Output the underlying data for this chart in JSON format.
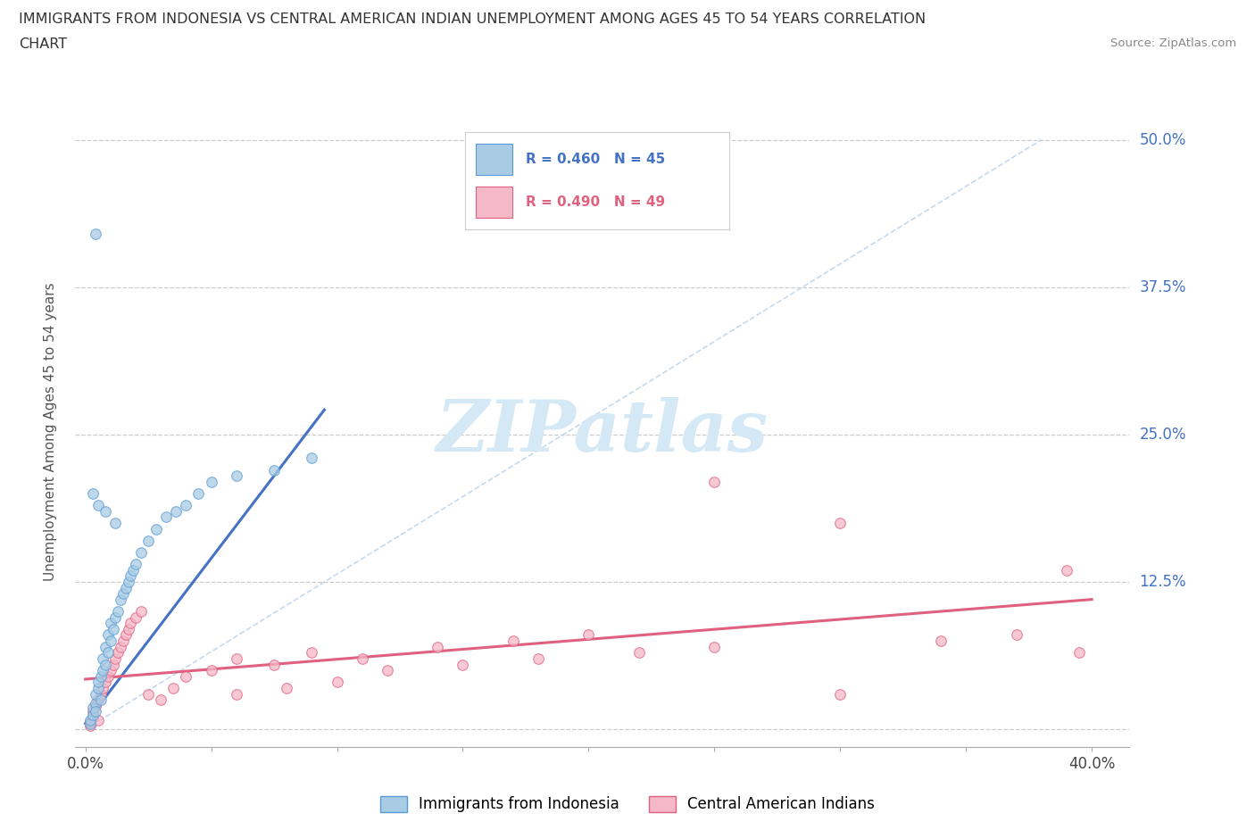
{
  "title_line1": "IMMIGRANTS FROM INDONESIA VS CENTRAL AMERICAN INDIAN UNEMPLOYMENT AMONG AGES 45 TO 54 YEARS CORRELATION",
  "title_line2": "CHART",
  "source": "Source: ZipAtlas.com",
  "ylabel": "Unemployment Among Ages 45 to 54 years",
  "xlim": [
    -0.004,
    0.415
  ],
  "ylim": [
    -0.015,
    0.52
  ],
  "xticks": [
    0.0,
    0.05,
    0.1,
    0.15,
    0.2,
    0.25,
    0.3,
    0.35,
    0.4
  ],
  "yticks": [
    0.0,
    0.125,
    0.25,
    0.375,
    0.5
  ],
  "legend_r1": "R = 0.460",
  "legend_n1": "N = 45",
  "legend_r2": "R = 0.490",
  "legend_n2": "N = 49",
  "color_blue_fill": "#a8cce4",
  "color_blue_edge": "#5b9bd5",
  "color_blue_line": "#4472c4",
  "color_pink_fill": "#f4b8c8",
  "color_pink_edge": "#e06080",
  "color_pink_line": "#e06080",
  "color_diag_line": "#b8cfe8",
  "watermark_color": "#d5e8f5",
  "watermark": "ZIPatlas",
  "legend_label1": "Immigrants from Indonesia",
  "legend_label2": "Central American Indians",
  "blue_x": [
    0.002,
    0.002,
    0.003,
    0.003,
    0.004,
    0.004,
    0.004,
    0.005,
    0.005,
    0.006,
    0.006,
    0.007,
    0.007,
    0.008,
    0.008,
    0.009,
    0.009,
    0.01,
    0.01,
    0.011,
    0.012,
    0.013,
    0.014,
    0.015,
    0.016,
    0.017,
    0.018,
    0.019,
    0.02,
    0.022,
    0.025,
    0.028,
    0.032,
    0.036,
    0.04,
    0.045,
    0.05,
    0.06,
    0.075,
    0.09,
    0.003,
    0.005,
    0.008,
    0.012,
    0.004
  ],
  "blue_y": [
    0.005,
    0.008,
    0.012,
    0.018,
    0.022,
    0.03,
    0.015,
    0.035,
    0.04,
    0.045,
    0.025,
    0.05,
    0.06,
    0.055,
    0.07,
    0.065,
    0.08,
    0.075,
    0.09,
    0.085,
    0.095,
    0.1,
    0.11,
    0.115,
    0.12,
    0.125,
    0.13,
    0.135,
    0.14,
    0.15,
    0.16,
    0.17,
    0.18,
    0.185,
    0.19,
    0.2,
    0.21,
    0.215,
    0.22,
    0.23,
    0.2,
    0.19,
    0.185,
    0.175,
    0.42
  ],
  "pink_x": [
    0.002,
    0.002,
    0.003,
    0.003,
    0.004,
    0.005,
    0.005,
    0.006,
    0.007,
    0.008,
    0.009,
    0.01,
    0.011,
    0.012,
    0.013,
    0.014,
    0.015,
    0.016,
    0.017,
    0.018,
    0.02,
    0.022,
    0.025,
    0.03,
    0.035,
    0.04,
    0.05,
    0.06,
    0.075,
    0.09,
    0.11,
    0.14,
    0.17,
    0.2,
    0.06,
    0.08,
    0.1,
    0.12,
    0.15,
    0.18,
    0.22,
    0.25,
    0.3,
    0.34,
    0.37,
    0.39,
    0.25,
    0.3,
    0.395
  ],
  "pink_y": [
    0.003,
    0.006,
    0.01,
    0.015,
    0.02,
    0.025,
    0.008,
    0.03,
    0.035,
    0.04,
    0.045,
    0.05,
    0.055,
    0.06,
    0.065,
    0.07,
    0.075,
    0.08,
    0.085,
    0.09,
    0.095,
    0.1,
    0.03,
    0.025,
    0.035,
    0.045,
    0.05,
    0.06,
    0.055,
    0.065,
    0.06,
    0.07,
    0.075,
    0.08,
    0.03,
    0.035,
    0.04,
    0.05,
    0.055,
    0.06,
    0.065,
    0.07,
    0.03,
    0.075,
    0.08,
    0.135,
    0.21,
    0.175,
    0.065
  ]
}
